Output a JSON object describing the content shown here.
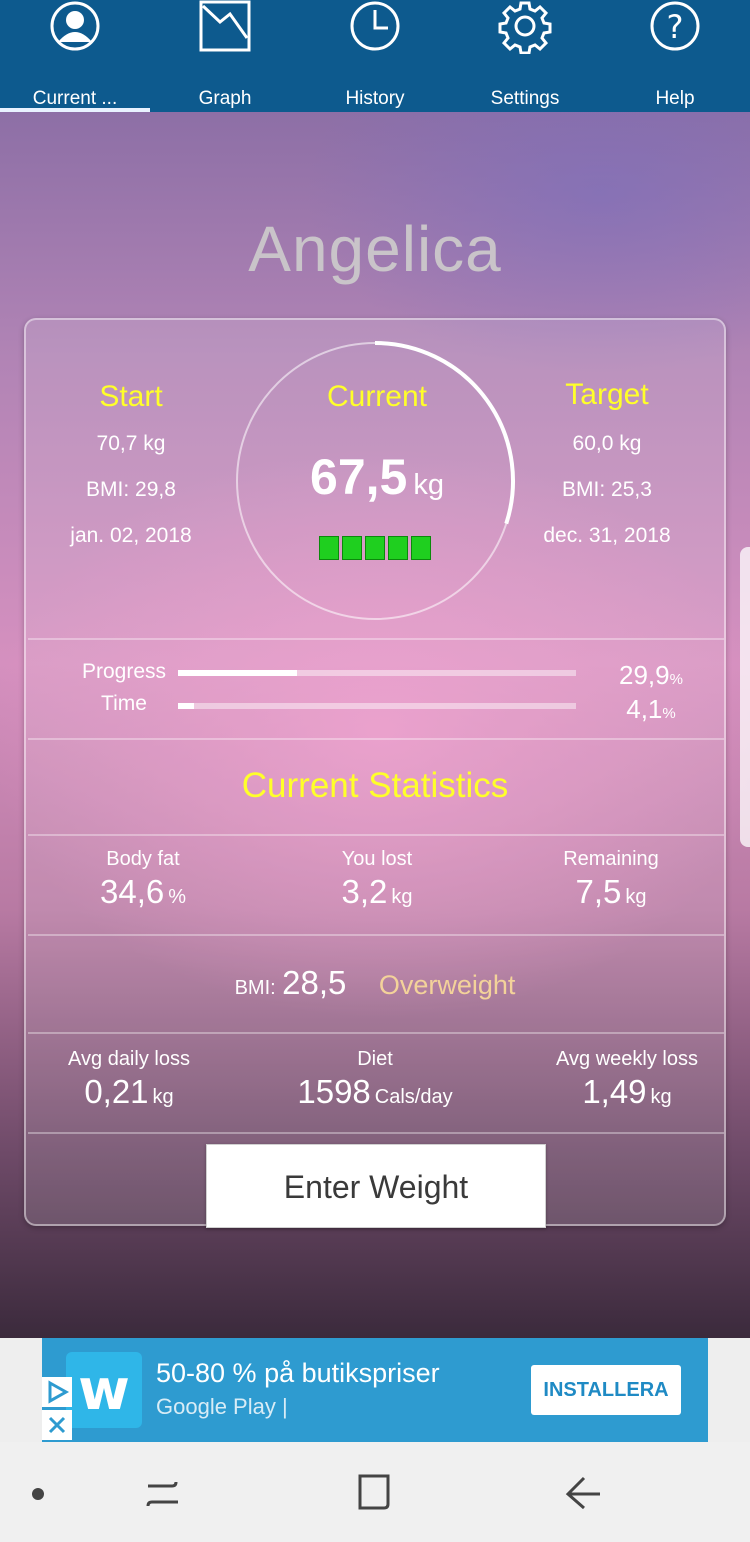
{
  "tabs": [
    {
      "label": "Current ...",
      "icon": "person-icon",
      "active": true
    },
    {
      "label": "Graph",
      "icon": "graph-icon",
      "active": false
    },
    {
      "label": "History",
      "icon": "clock-icon",
      "active": false
    },
    {
      "label": "Settings",
      "icon": "gear-icon",
      "active": false
    },
    {
      "label": "Help",
      "icon": "help-icon",
      "active": false
    }
  ],
  "user_name": "Angelica",
  "start": {
    "label": "Start",
    "weight": "70,7 kg",
    "bmi": "BMI: 29,8",
    "date": "jan. 02, 2018"
  },
  "current": {
    "label": "Current",
    "weight": "67,5",
    "unit": "kg",
    "ring_fraction": 0.3,
    "blocks": 5
  },
  "target": {
    "label": "Target",
    "weight": "60,0 kg",
    "bmi": "BMI: 25,3",
    "date": "dec. 31, 2018"
  },
  "progress": {
    "label": "Progress",
    "value": "29,9",
    "unit": "%",
    "fraction": 0.299
  },
  "time": {
    "label": "Time",
    "value": "4,1",
    "unit": "%",
    "fraction": 0.041
  },
  "stats_title": "Current Statistics",
  "body_fat": {
    "label": "Body fat",
    "value": "34,6",
    "unit": "%"
  },
  "you_lost": {
    "label": "You lost",
    "value": "3,2",
    "unit": "kg"
  },
  "remaining": {
    "label": "Remaining",
    "value": "7,5",
    "unit": "kg"
  },
  "bmi": {
    "label": "BMI:",
    "value": "28,5",
    "category": "Overweight"
  },
  "avg_daily": {
    "label": "Avg daily loss",
    "value": "0,21",
    "unit": "kg"
  },
  "diet": {
    "label": "Diet",
    "value": "1598",
    "unit": "Cals/day"
  },
  "avg_weekly": {
    "label": "Avg weekly loss",
    "value": "1,49",
    "unit": "kg"
  },
  "enter_weight": "Enter Weight",
  "ad": {
    "headline": "50-80 % på butikspriser",
    "sub": "Google Play  |",
    "install": "INSTALLERA",
    "logo_letter": "w"
  },
  "colors": {
    "nav_bg": "#0d5a8e",
    "heading_yellow": "#ffff2a",
    "overweight": "#f3d29a",
    "progress_green": "#1fcf1f",
    "ad_bg": "#2e9bd0"
  }
}
